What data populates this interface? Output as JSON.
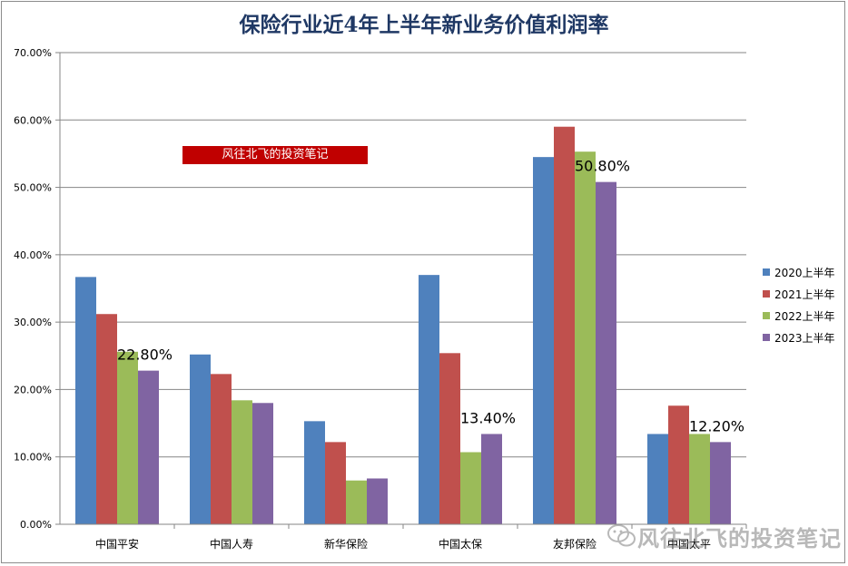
{
  "chart_data": {
    "type": "bar",
    "title": "保险行业近4年上半年新业务价值利润率",
    "categories": [
      "中国平安",
      "中国人寿",
      "新华保险",
      "中国太保",
      "友邦保险",
      "中国太平"
    ],
    "series": [
      {
        "name": "2020上半年",
        "color": "#4f81bd",
        "values": [
          36.7,
          25.2,
          15.3,
          37.0,
          54.5,
          13.4
        ]
      },
      {
        "name": "2021上半年",
        "color": "#c0504d",
        "values": [
          31.2,
          22.3,
          12.2,
          25.4,
          59.0,
          17.6
        ]
      },
      {
        "name": "2022上半年",
        "color": "#9bbb59",
        "values": [
          25.6,
          18.4,
          6.5,
          10.7,
          55.3,
          13.4
        ]
      },
      {
        "name": "2023上半年",
        "color": "#8064a2",
        "values": [
          22.8,
          18.0,
          6.8,
          13.4,
          50.8,
          12.2
        ]
      }
    ],
    "data_labels": [
      {
        "category_index": 0,
        "series_index": 3,
        "text": "22.80%"
      },
      {
        "category_index": 3,
        "series_index": 3,
        "text": "13.40%"
      },
      {
        "category_index": 4,
        "series_index": 3,
        "text": "50.80%"
      },
      {
        "category_index": 5,
        "series_index": 3,
        "text": "12.20%"
      }
    ],
    "y_ticks": [
      "0.00%",
      "10.00%",
      "20.00%",
      "30.00%",
      "40.00%",
      "50.00%",
      "60.00%",
      "70.00%"
    ],
    "ylim": [
      0,
      70
    ],
    "grid": true,
    "legend_position": "right"
  },
  "banner": "风往北飞的投资笔记",
  "watermark": {
    "text": "风往北飞的投资笔记",
    "icon": "wechat-icon"
  }
}
